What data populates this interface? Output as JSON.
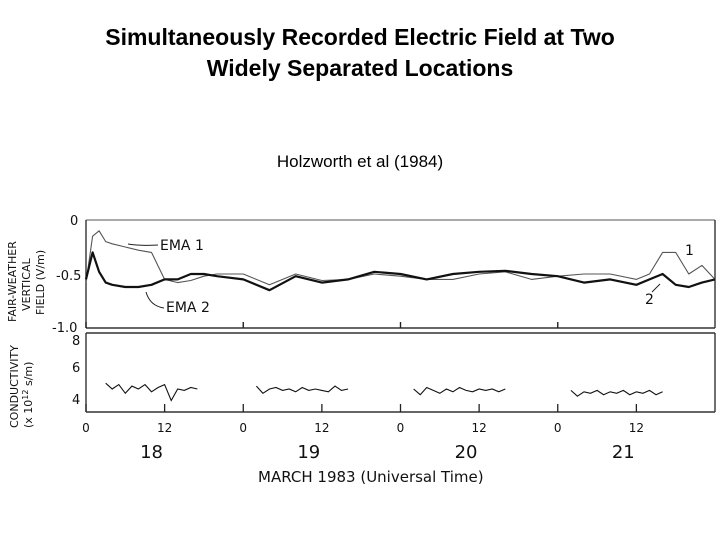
{
  "slide": {
    "title_line1": "Simultaneously Recorded Electric Field at Two",
    "title_line2": "Widely Separated Locations",
    "citation": "Holzworth et al (1984)"
  },
  "chart_data": [
    {
      "type": "line",
      "ylabel_lines": [
        "FAIR-WEATHER",
        "VERTICAL",
        "FIELD (V/m)"
      ],
      "ylim": [
        -1.0,
        0
      ],
      "yticks": [
        "0",
        "-0.5",
        "-1.0"
      ],
      "annotations": [
        "EMA 1",
        "EMA 2",
        "1",
        "2"
      ],
      "series": [
        {
          "name": "EMA 1",
          "x": [
            0,
            1,
            2,
            3,
            4,
            6,
            8,
            10,
            12,
            14,
            16,
            18,
            20,
            24,
            28,
            32,
            36,
            40,
            44,
            48,
            52,
            56,
            60,
            64,
            68,
            72,
            76,
            80,
            84,
            86,
            88,
            90,
            92,
            94,
            96
          ],
          "values": [
            -0.58,
            -0.15,
            -0.1,
            -0.2,
            -0.22,
            -0.25,
            -0.28,
            -0.3,
            -0.55,
            -0.58,
            -0.56,
            -0.52,
            -0.5,
            -0.5,
            -0.6,
            -0.5,
            -0.56,
            -0.55,
            -0.5,
            -0.52,
            -0.55,
            -0.55,
            -0.5,
            -0.48,
            -0.55,
            -0.52,
            -0.5,
            -0.5,
            -0.55,
            -0.5,
            -0.3,
            -0.3,
            -0.5,
            -0.42,
            -0.55
          ]
        },
        {
          "name": "EMA 2",
          "x": [
            0,
            1,
            2,
            3,
            4,
            6,
            8,
            10,
            12,
            14,
            16,
            18,
            20,
            24,
            28,
            32,
            36,
            40,
            44,
            48,
            52,
            56,
            60,
            64,
            68,
            72,
            76,
            80,
            84,
            86,
            88,
            90,
            92,
            94,
            96
          ],
          "values": [
            -0.55,
            -0.3,
            -0.48,
            -0.58,
            -0.6,
            -0.62,
            -0.62,
            -0.6,
            -0.55,
            -0.55,
            -0.5,
            -0.5,
            -0.52,
            -0.55,
            -0.65,
            -0.52,
            -0.58,
            -0.55,
            -0.48,
            -0.5,
            -0.55,
            -0.5,
            -0.48,
            -0.47,
            -0.5,
            -0.52,
            -0.58,
            -0.55,
            -0.6,
            -0.55,
            -0.5,
            -0.6,
            -0.62,
            -0.58,
            -0.55
          ]
        }
      ]
    },
    {
      "type": "line",
      "ylabel_lines": [
        "CONDUCTIVITY",
        "(x 10",
        "12",
        " s/m)"
      ],
      "ylim": [
        3,
        8
      ],
      "yticks": [
        "8",
        "6",
        "4"
      ],
      "xlabel": "MARCH 1983 (Universal Time)",
      "x_ticks": [
        "0",
        "12",
        "0",
        "12",
        "0",
        "12",
        "0",
        "12"
      ],
      "day_labels": [
        "18",
        "19",
        "20",
        "21"
      ],
      "series": [
        {
          "segments": [
            {
              "x": [
                3,
                4,
                5,
                6,
                7,
                8,
                9,
                10,
                11,
                12,
                13,
                14,
                15,
                16,
                17
              ],
              "values": [
                5.0,
                4.6,
                4.9,
                4.3,
                4.8,
                4.6,
                4.9,
                4.4,
                4.7,
                4.9,
                3.8,
                4.6,
                4.5,
                4.7,
                4.6
              ]
            },
            {
              "x": [
                26,
                27,
                28,
                29,
                30,
                31,
                32,
                33,
                34,
                35,
                36,
                37,
                38,
                39,
                40
              ],
              "values": [
                4.8,
                4.3,
                4.6,
                4.7,
                4.5,
                4.6,
                4.4,
                4.7,
                4.5,
                4.6,
                4.5,
                4.4,
                4.8,
                4.5,
                4.6
              ]
            },
            {
              "x": [
                50,
                51,
                52,
                53,
                54,
                55,
                56,
                57,
                58,
                59,
                60,
                61,
                62,
                63,
                64
              ],
              "values": [
                4.6,
                4.2,
                4.7,
                4.5,
                4.3,
                4.6,
                4.4,
                4.7,
                4.5,
                4.4,
                4.6,
                4.5,
                4.6,
                4.4,
                4.6
              ]
            },
            {
              "x": [
                74,
                75,
                76,
                77,
                78,
                79,
                80,
                81,
                82,
                83,
                84,
                85,
                86,
                87,
                88
              ],
              "values": [
                4.5,
                4.1,
                4.4,
                4.3,
                4.5,
                4.2,
                4.4,
                4.3,
                4.5,
                4.2,
                4.4,
                4.3,
                4.5,
                4.2,
                4.4
              ]
            }
          ]
        }
      ]
    }
  ]
}
